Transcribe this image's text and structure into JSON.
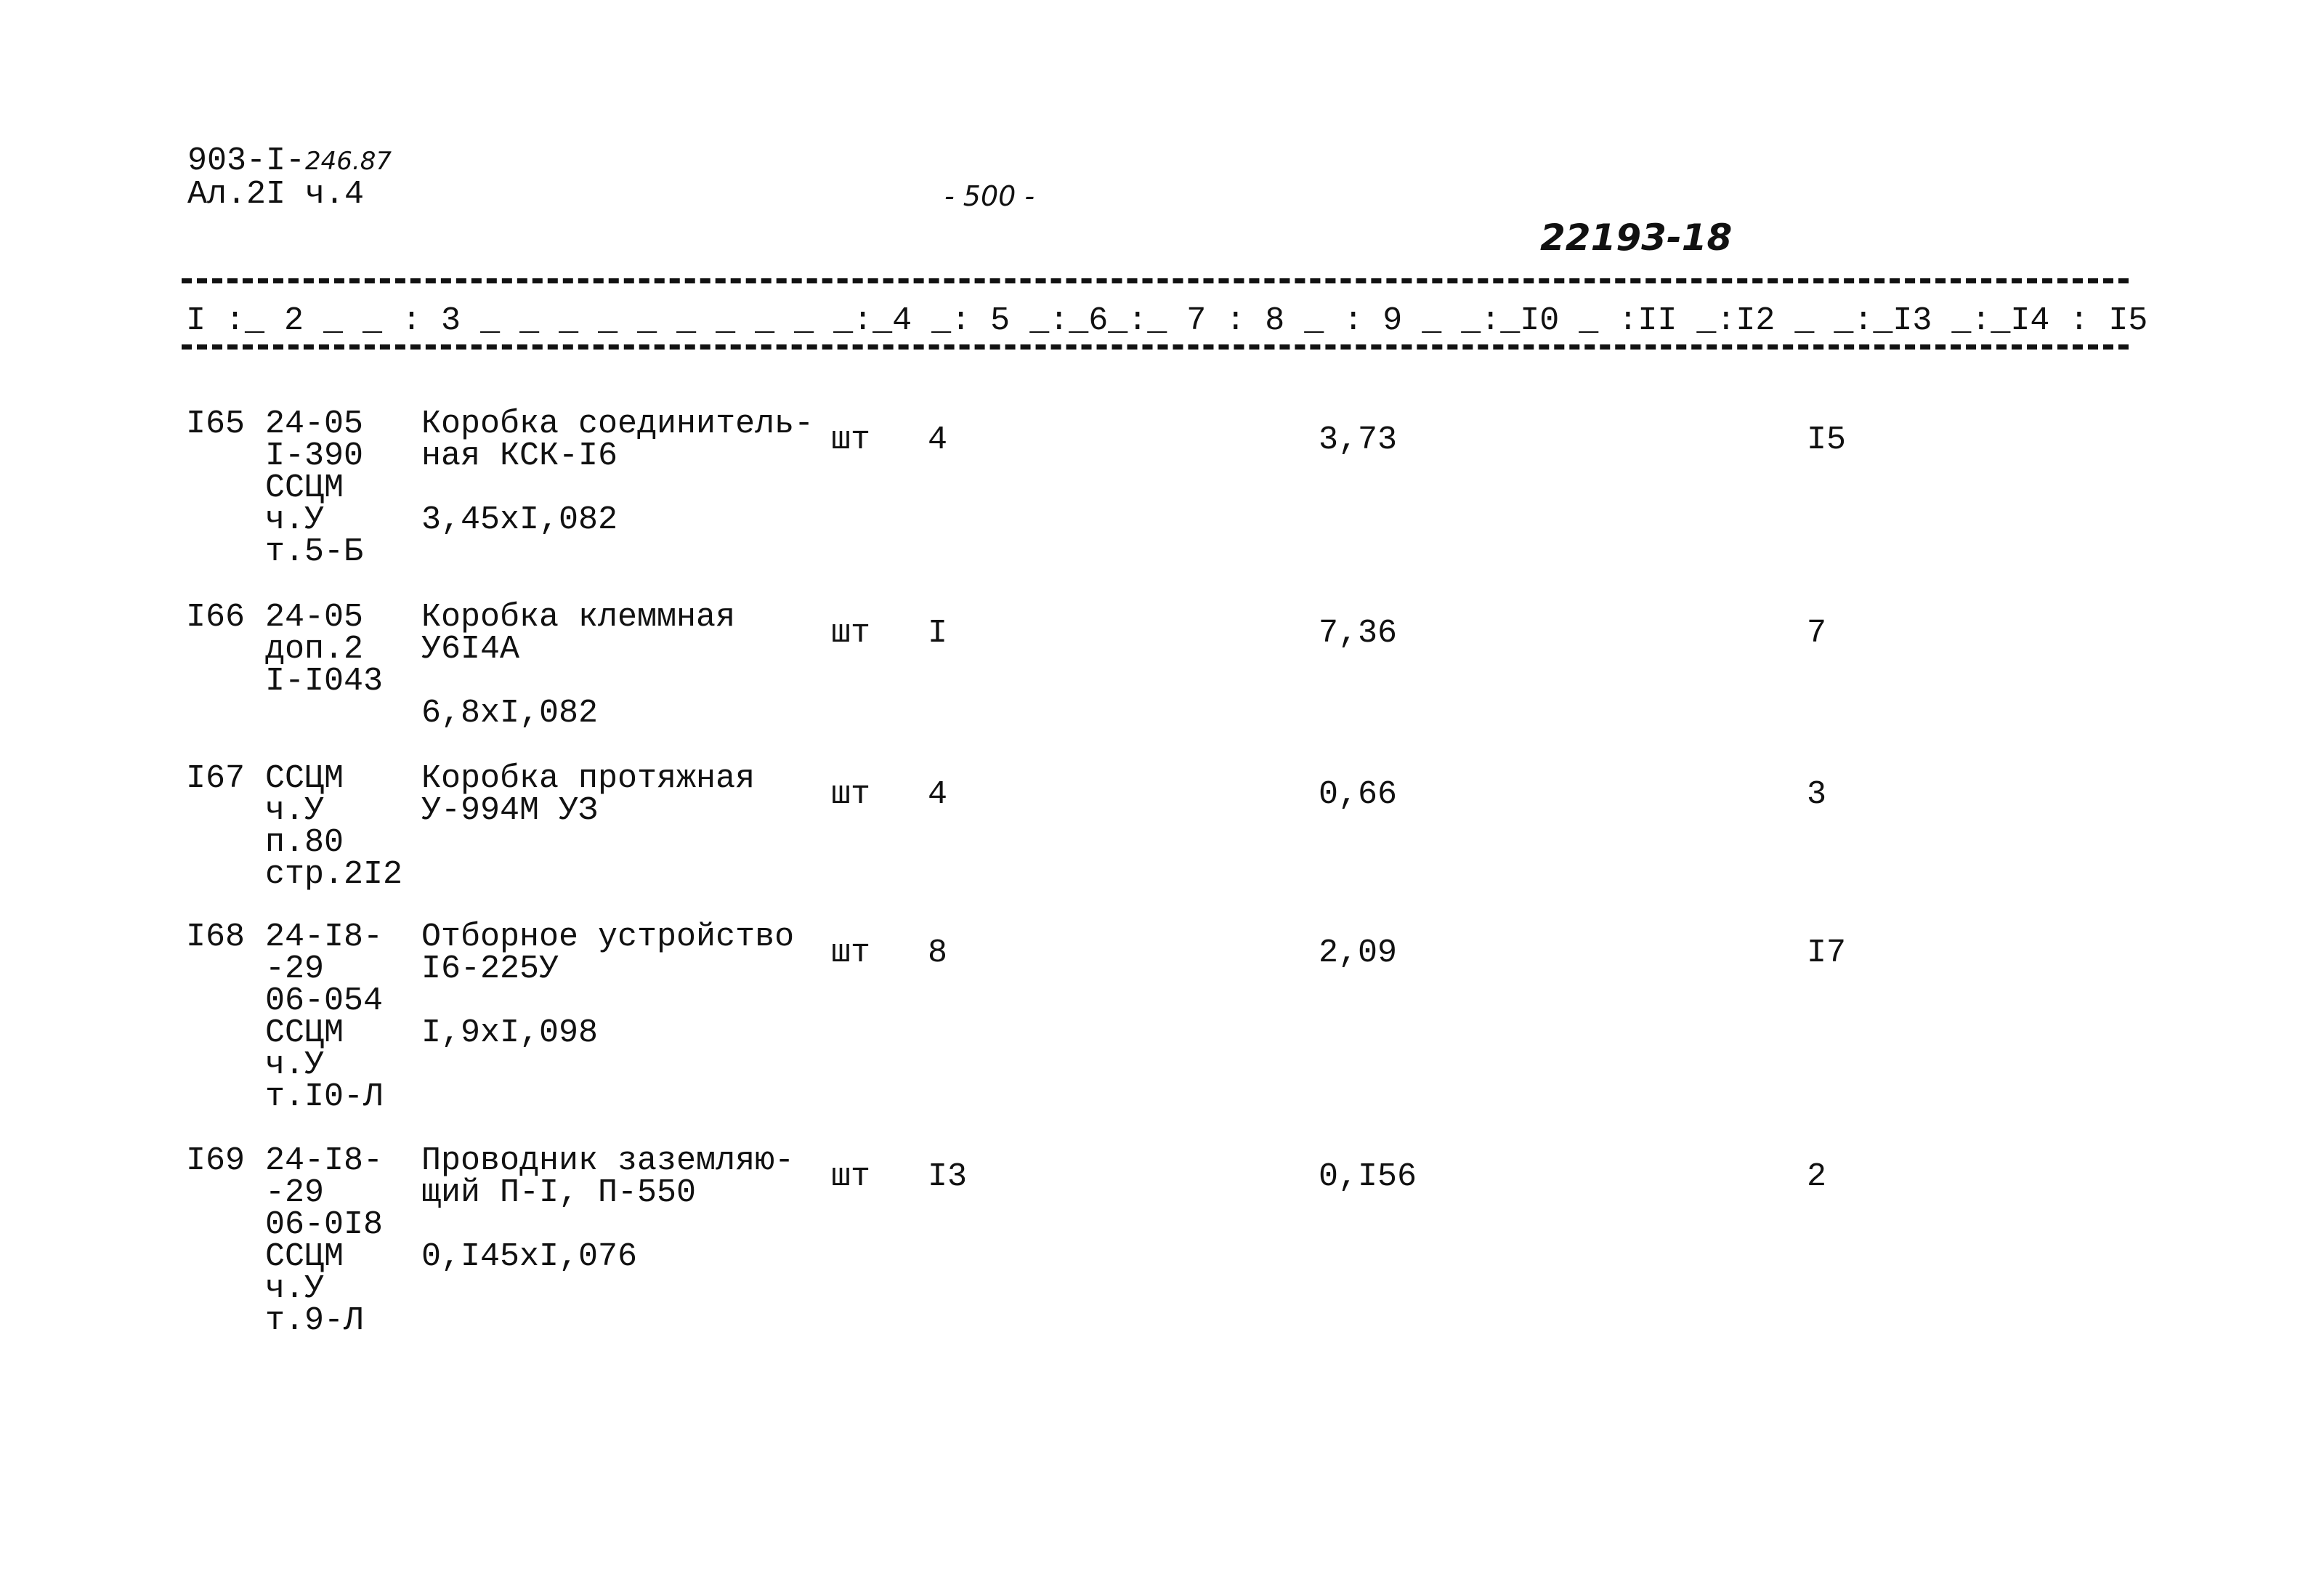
{
  "header": {
    "doc_code": "903-I-",
    "doc_code_handwritten": "246.87",
    "album": "Ал.2I ч.4",
    "page_number": "- 500 -",
    "archive_number": "22193-18"
  },
  "columns_header": "I :_ 2 _ _ : 3 _ _ _ _ _ _ _ _ _ _:_4 _: 5 _:_6_:_ 7 : 8 _ : 9 _ _:_I0 _ :II _:I2 _ _:_I3 _:_I4 : I5",
  "rows": [
    {
      "num": "I65",
      "ref": "24-05\nI-390\nССЦМ\nч.У\nт.5-Б",
      "name": "Коробка соединитель-\nная КСК-I6",
      "calc": "3,45xI,082",
      "unit": "шт",
      "qty": "4",
      "col9": "3,73",
      "col13": "I5"
    },
    {
      "num": "I66",
      "ref": "24-05\nдоп.2\nI-I043",
      "name": "Коробка клеммная\nУ6I4А",
      "calc": "6,8xI,082",
      "unit": "шт",
      "qty": "I",
      "col9": "7,36",
      "col13": "7"
    },
    {
      "num": "I67",
      "ref": "ССЦМ\nч.У\nп.80\nстр.2I2",
      "name": "Коробка протяжная\nУ-994М УЗ",
      "calc": "",
      "unit": "шт",
      "qty": "4",
      "col9": "0,66",
      "col13": "3"
    },
    {
      "num": "I68",
      "ref": "24-I8-\n-29\n06-054\nССЦМ\nч.У\nт.I0-Л",
      "name": "Отборное устройство\nI6-225У",
      "calc": "I,9xI,098",
      "unit": "шт",
      "qty": "8",
      "col9": "2,09",
      "col13": "I7"
    },
    {
      "num": "I69",
      "ref": "24-I8-\n-29\n06-0I8\nССЦМ\nч.У\nт.9-Л",
      "name": "Проводник заземляю-\nщий П-I, П-550",
      "calc": "0,I45xI,076",
      "unit": "шт",
      "qty": "I3",
      "col9": "0,I56",
      "col13": "2"
    }
  ]
}
